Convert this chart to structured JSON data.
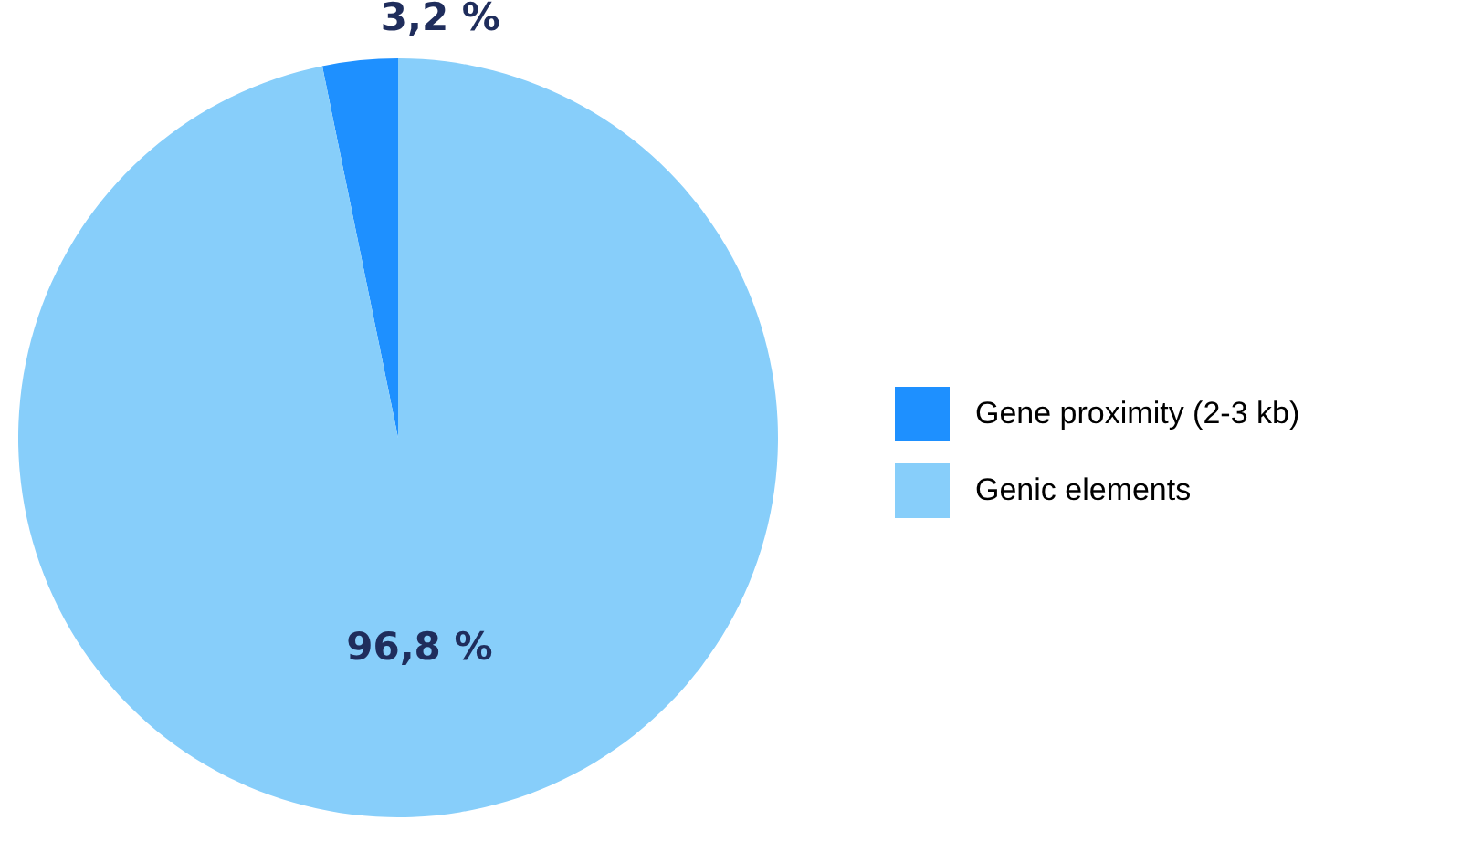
{
  "chart_data": {
    "type": "pie",
    "categories": [
      "Gene proximity (2-3 kb)",
      "Genic elements"
    ],
    "values": [
      3.2,
      96.8
    ],
    "colors": [
      "#1e90ff",
      "#87cefa"
    ],
    "value_labels": [
      "3,2 %",
      "96,8 %"
    ],
    "legend": "right"
  }
}
